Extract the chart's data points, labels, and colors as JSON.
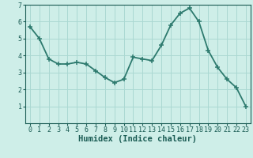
{
  "x": [
    0,
    1,
    2,
    3,
    4,
    5,
    6,
    7,
    8,
    9,
    10,
    11,
    12,
    13,
    14,
    15,
    16,
    17,
    18,
    19,
    20,
    21,
    22,
    23
  ],
  "y": [
    5.7,
    5.0,
    3.8,
    3.5,
    3.5,
    3.6,
    3.5,
    3.1,
    2.7,
    2.4,
    2.6,
    3.9,
    3.8,
    3.7,
    4.6,
    5.8,
    6.5,
    6.8,
    6.0,
    4.3,
    3.3,
    2.6,
    2.1,
    1.0
  ],
  "line_color": "#2d7a6e",
  "marker": "+",
  "marker_size": 4,
  "bg_color": "#ceeee8",
  "grid_color": "#aad8d2",
  "xlabel": "Humidex (Indice chaleur)",
  "ylim": [
    0,
    7
  ],
  "xlim": [
    -0.5,
    23.5
  ],
  "yticks": [
    1,
    2,
    3,
    4,
    5,
    6,
    7
  ],
  "xticks": [
    0,
    1,
    2,
    3,
    4,
    5,
    6,
    7,
    8,
    9,
    10,
    11,
    12,
    13,
    14,
    15,
    16,
    17,
    18,
    19,
    20,
    21,
    22,
    23
  ],
  "tick_label_color": "#1a5c54",
  "xlabel_fontsize": 7.5,
  "tick_fontsize": 6,
  "linewidth": 1.3,
  "markeredgewidth": 1.1
}
